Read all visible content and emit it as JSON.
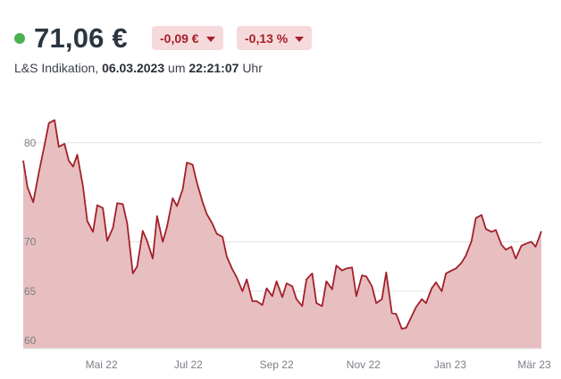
{
  "header": {
    "price": "71,06 €",
    "change_abs": "-0,09 €",
    "change_pct": "-0,13 %",
    "source": "L&S Indikation,",
    "date": "06.03.2023",
    "um": "um",
    "time": "22:21:07",
    "uhr": "Uhr"
  },
  "colors": {
    "live": "#4caf50",
    "line": "#a3202a",
    "area": "#e6bcbd",
    "badge_bg": "#f6dadb",
    "badge_text": "#a3202a",
    "grid": "#e3e3e6"
  },
  "chart_data": {
    "type": "area",
    "title": "",
    "xlabel": "",
    "ylabel": "",
    "ylim": [
      59.2,
      84.5
    ],
    "y_ticks": [
      60,
      65,
      70,
      80
    ],
    "y_tick_labels": [
      "60",
      "65",
      "70",
      "80"
    ],
    "x_range": [
      "2022-03-07",
      "2023-03-06"
    ],
    "x_ticks": [
      "2022-05-01",
      "2022-07-01",
      "2022-09-01",
      "2022-11-01",
      "2023-01-01",
      "2023-03-01"
    ],
    "x_tick_labels": [
      "Mai 22",
      "Jul 22",
      "Sep 22",
      "Nov 22",
      "Jan 23",
      "Mär 23"
    ],
    "legend": "none",
    "grid": "horizontal",
    "series": [
      {
        "x": [
          "2022-03-07",
          "2022-03-10",
          "2022-03-14",
          "2022-03-18",
          "2022-03-22",
          "2022-03-25",
          "2022-03-29",
          "2022-04-01",
          "2022-04-05",
          "2022-04-08",
          "2022-04-11",
          "2022-04-14",
          "2022-04-18",
          "2022-04-21",
          "2022-04-25",
          "2022-04-28",
          "2022-05-02",
          "2022-05-05",
          "2022-05-09",
          "2022-05-12",
          "2022-05-16",
          "2022-05-19",
          "2022-05-23",
          "2022-05-26",
          "2022-05-30",
          "2022-06-02",
          "2022-06-06",
          "2022-06-09",
          "2022-06-13",
          "2022-06-16",
          "2022-06-20",
          "2022-06-23",
          "2022-06-27",
          "2022-06-30",
          "2022-07-04",
          "2022-07-07",
          "2022-07-11",
          "2022-07-14",
          "2022-07-18",
          "2022-07-21",
          "2022-07-25",
          "2022-07-28",
          "2022-08-01",
          "2022-08-04",
          "2022-08-08",
          "2022-08-11",
          "2022-08-15",
          "2022-08-18",
          "2022-08-22",
          "2022-08-25",
          "2022-08-29",
          "2022-09-01",
          "2022-09-05",
          "2022-09-08",
          "2022-09-12",
          "2022-09-15",
          "2022-09-19",
          "2022-09-22",
          "2022-09-26",
          "2022-09-29",
          "2022-10-03",
          "2022-10-06",
          "2022-10-10",
          "2022-10-13",
          "2022-10-17",
          "2022-10-20",
          "2022-10-24",
          "2022-10-27",
          "2022-10-31",
          "2022-11-03",
          "2022-11-07",
          "2022-11-10",
          "2022-11-14",
          "2022-11-17",
          "2022-11-21",
          "2022-11-24",
          "2022-11-28",
          "2022-12-01",
          "2022-12-05",
          "2022-12-08",
          "2022-12-12",
          "2022-12-15",
          "2022-12-19",
          "2022-12-22",
          "2022-12-26",
          "2022-12-29",
          "2023-01-02",
          "2023-01-05",
          "2023-01-09",
          "2023-01-12",
          "2023-01-16",
          "2023-01-19",
          "2023-01-23",
          "2023-01-26",
          "2023-01-30",
          "2023-02-02",
          "2023-02-06",
          "2023-02-09",
          "2023-02-13",
          "2023-02-16",
          "2023-02-20",
          "2023-02-23",
          "2023-02-27",
          "2023-03-02",
          "2023-03-06"
        ],
        "values": [
          78.2,
          75.5,
          74.0,
          77.0,
          79.8,
          82.0,
          82.3,
          79.6,
          79.9,
          78.2,
          77.6,
          78.8,
          75.6,
          72.1,
          71.0,
          73.7,
          73.4,
          70.1,
          71.4,
          73.9,
          73.8,
          71.9,
          66.8,
          67.5,
          71.1,
          70.1,
          68.3,
          72.6,
          70.0,
          71.5,
          74.4,
          73.6,
          75.3,
          78.0,
          77.8,
          76.0,
          74.0,
          72.8,
          71.8,
          70.8,
          70.5,
          68.5,
          67.2,
          66.4,
          65.0,
          66.2,
          64.0,
          64.0,
          63.6,
          65.3,
          64.5,
          66.0,
          64.4,
          65.8,
          65.5,
          64.2,
          63.5,
          66.2,
          66.8,
          63.8,
          63.5,
          66.0,
          65.2,
          67.6,
          67.1,
          67.3,
          67.4,
          64.5,
          66.6,
          66.5,
          65.5,
          63.8,
          64.2,
          66.9,
          62.8,
          62.7,
          61.2,
          61.3,
          62.5,
          63.4,
          64.2,
          63.8,
          65.3,
          65.9,
          65.0,
          66.8,
          67.1,
          67.3,
          67.9,
          68.6,
          70.1,
          72.4,
          72.7,
          71.3,
          71.0,
          71.2,
          69.7,
          69.2,
          69.5,
          68.3,
          69.6,
          69.8,
          70.0,
          69.5,
          71.06
        ]
      }
    ]
  }
}
